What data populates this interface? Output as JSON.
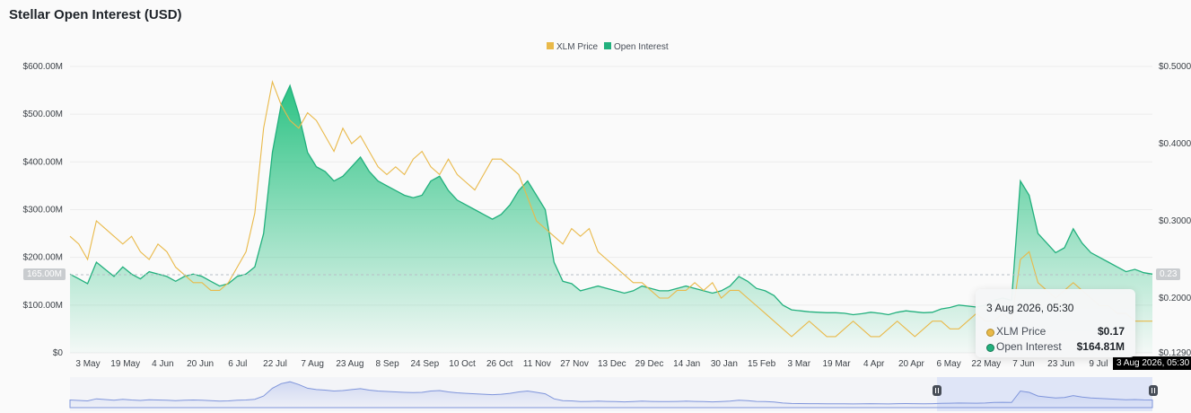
{
  "page": {
    "title": "Stellar Open Interest (USD)"
  },
  "tooltip": {
    "date": "3 Aug 2026, 05:30",
    "rows": [
      {
        "label": "XLM Price",
        "value": "$0.17",
        "color": "#e9b949"
      },
      {
        "label": "Open Interest",
        "value": "$164.81M",
        "color": "#22b07d"
      }
    ]
  },
  "crosshair": {
    "oi_label": "165.00M",
    "price_label": "0.23",
    "date_label": "3 Aug 2026, 05:30"
  },
  "chart_data": {
    "type": "area",
    "title": "Stellar Open Interest (USD)",
    "legend_position": "top-center",
    "grid": true,
    "x_tick_labels": [
      "3 May",
      "19 May",
      "4 Jun",
      "20 Jun",
      "6 Jul",
      "22 Jul",
      "7 Aug",
      "23 Aug",
      "8 Sep",
      "24 Sep",
      "10 Oct",
      "26 Oct",
      "11 Nov",
      "27 Nov",
      "13 Dec",
      "29 Dec",
      "14 Jan",
      "30 Jan",
      "15 Feb",
      "3 Mar",
      "19 Mar",
      "4 Apr",
      "20 Apr",
      "6 May",
      "22 May",
      "7 Jun",
      "23 Jun",
      "9 Jul",
      "3 Aug 2026, 05:30"
    ],
    "y_left": {
      "ticks": [
        "$0",
        "$100.00M",
        "$200.00M",
        "$300.00M",
        "$400.00M",
        "$500.00M",
        "$600.00M"
      ],
      "range": [
        0,
        600
      ]
    },
    "y_right": {
      "ticks": [
        "$0.1290",
        "$0.2000",
        "$0.3000",
        "$0.4000",
        "$0.5000"
      ],
      "range": [
        0.129,
        0.5
      ]
    },
    "series": [
      {
        "name": "Open Interest",
        "axis": "left",
        "unit": "M USD",
        "color": "#22b07d",
        "values": [
          165,
          155,
          145,
          190,
          175,
          160,
          180,
          165,
          155,
          170,
          165,
          160,
          150,
          160,
          165,
          160,
          150,
          140,
          145,
          160,
          165,
          180,
          250,
          420,
          520,
          560,
          500,
          420,
          390,
          380,
          360,
          370,
          390,
          410,
          380,
          360,
          350,
          340,
          330,
          325,
          330,
          360,
          370,
          340,
          320,
          310,
          300,
          290,
          280,
          290,
          310,
          340,
          360,
          330,
          300,
          190,
          150,
          145,
          130,
          135,
          140,
          135,
          130,
          125,
          130,
          140,
          135,
          130,
          130,
          135,
          140,
          135,
          130,
          125,
          130,
          140,
          160,
          150,
          135,
          130,
          120,
          100,
          90,
          88,
          86,
          85,
          84,
          84,
          83,
          80,
          82,
          85,
          83,
          80,
          85,
          88,
          86,
          84,
          85,
          92,
          95,
          100,
          98,
          96,
          100,
          110,
          115,
          110,
          360,
          330,
          250,
          230,
          210,
          220,
          260,
          230,
          210,
          200,
          190,
          180,
          170,
          175,
          168,
          165
        ]
      },
      {
        "name": "XLM Price",
        "axis": "right",
        "unit": "USD",
        "color": "#e9b949",
        "values": [
          0.28,
          0.27,
          0.25,
          0.3,
          0.29,
          0.28,
          0.27,
          0.28,
          0.26,
          0.25,
          0.27,
          0.26,
          0.24,
          0.23,
          0.22,
          0.22,
          0.21,
          0.21,
          0.22,
          0.24,
          0.26,
          0.31,
          0.42,
          0.48,
          0.45,
          0.43,
          0.42,
          0.44,
          0.43,
          0.41,
          0.39,
          0.42,
          0.4,
          0.41,
          0.39,
          0.37,
          0.36,
          0.37,
          0.36,
          0.38,
          0.39,
          0.37,
          0.36,
          0.38,
          0.36,
          0.35,
          0.34,
          0.36,
          0.38,
          0.38,
          0.37,
          0.36,
          0.33,
          0.3,
          0.29,
          0.28,
          0.27,
          0.29,
          0.28,
          0.29,
          0.26,
          0.25,
          0.24,
          0.23,
          0.22,
          0.22,
          0.21,
          0.2,
          0.2,
          0.21,
          0.21,
          0.22,
          0.21,
          0.22,
          0.2,
          0.21,
          0.21,
          0.2,
          0.19,
          0.18,
          0.17,
          0.16,
          0.15,
          0.16,
          0.17,
          0.16,
          0.15,
          0.15,
          0.16,
          0.17,
          0.16,
          0.15,
          0.15,
          0.16,
          0.17,
          0.16,
          0.15,
          0.16,
          0.17,
          0.17,
          0.16,
          0.16,
          0.17,
          0.18,
          0.17,
          0.17,
          0.18,
          0.17,
          0.25,
          0.26,
          0.22,
          0.21,
          0.2,
          0.21,
          0.22,
          0.21,
          0.2,
          0.19,
          0.19,
          0.18,
          0.18,
          0.17,
          0.17,
          0.17
        ]
      }
    ]
  }
}
